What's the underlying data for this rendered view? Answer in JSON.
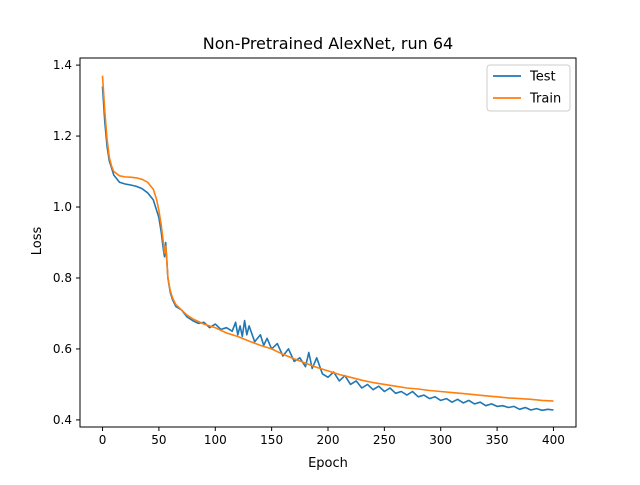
{
  "chart_data": {
    "type": "line",
    "title": "Non-Pretrained AlexNet, run 64",
    "xlabel": "Epoch",
    "ylabel": "Loss",
    "xlim": [
      -20,
      420
    ],
    "ylim": [
      0.38,
      1.42
    ],
    "xticks": [
      0,
      50,
      100,
      150,
      200,
      250,
      300,
      350,
      400
    ],
    "yticks": [
      0.4,
      0.6,
      0.8,
      1.0,
      1.2,
      1.4
    ],
    "xtick_labels": [
      "0",
      "50",
      "100",
      "150",
      "200",
      "250",
      "300",
      "350",
      "400"
    ],
    "ytick_labels": [
      "0.4",
      "0.6",
      "0.8",
      "1.0",
      "1.2",
      "1.4"
    ],
    "grid": false,
    "legend_position": "top-right",
    "series": [
      {
        "name": "Test",
        "color": "#1f77b4",
        "x": [
          0,
          2,
          4,
          6,
          8,
          10,
          15,
          20,
          25,
          30,
          35,
          40,
          45,
          48,
          50,
          52,
          54,
          55,
          56,
          57,
          58,
          60,
          62,
          65,
          70,
          75,
          80,
          85,
          90,
          95,
          100,
          105,
          110,
          115,
          118,
          120,
          122,
          124,
          126,
          128,
          130,
          135,
          140,
          143,
          146,
          150,
          155,
          160,
          165,
          170,
          175,
          180,
          183,
          186,
          190,
          195,
          200,
          205,
          210,
          215,
          220,
          225,
          230,
          235,
          240,
          245,
          250,
          255,
          260,
          265,
          270,
          275,
          280,
          285,
          290,
          295,
          300,
          305,
          310,
          315,
          320,
          325,
          330,
          335,
          340,
          345,
          350,
          355,
          360,
          365,
          370,
          375,
          380,
          385,
          390,
          395,
          400
        ],
        "y": [
          1.34,
          1.24,
          1.17,
          1.13,
          1.11,
          1.09,
          1.07,
          1.065,
          1.062,
          1.058,
          1.052,
          1.04,
          1.02,
          0.99,
          0.97,
          0.93,
          0.88,
          0.86,
          0.9,
          0.85,
          0.8,
          0.76,
          0.74,
          0.72,
          0.71,
          0.69,
          0.68,
          0.672,
          0.675,
          0.66,
          0.67,
          0.655,
          0.66,
          0.65,
          0.675,
          0.64,
          0.665,
          0.635,
          0.68,
          0.64,
          0.665,
          0.62,
          0.64,
          0.61,
          0.63,
          0.6,
          0.615,
          0.58,
          0.6,
          0.565,
          0.575,
          0.55,
          0.59,
          0.545,
          0.575,
          0.53,
          0.52,
          0.535,
          0.51,
          0.525,
          0.5,
          0.51,
          0.49,
          0.5,
          0.485,
          0.495,
          0.48,
          0.49,
          0.475,
          0.48,
          0.47,
          0.48,
          0.465,
          0.47,
          0.46,
          0.465,
          0.455,
          0.46,
          0.45,
          0.458,
          0.448,
          0.455,
          0.445,
          0.45,
          0.44,
          0.445,
          0.438,
          0.44,
          0.435,
          0.438,
          0.43,
          0.435,
          0.428,
          0.432,
          0.427,
          0.43,
          0.428
        ]
      },
      {
        "name": "Train",
        "color": "#ff7f0e",
        "x": [
          0,
          2,
          4,
          6,
          8,
          10,
          15,
          20,
          25,
          30,
          35,
          40,
          45,
          48,
          50,
          52,
          54,
          55,
          56,
          57,
          58,
          60,
          62,
          65,
          70,
          75,
          80,
          90,
          100,
          110,
          120,
          130,
          140,
          150,
          160,
          170,
          180,
          190,
          200,
          210,
          220,
          230,
          240,
          250,
          260,
          270,
          280,
          290,
          300,
          310,
          320,
          330,
          340,
          350,
          360,
          370,
          380,
          390,
          400
        ],
        "y": [
          1.37,
          1.27,
          1.19,
          1.14,
          1.115,
          1.1,
          1.088,
          1.085,
          1.084,
          1.082,
          1.078,
          1.07,
          1.05,
          1.02,
          0.99,
          0.95,
          0.9,
          0.87,
          0.89,
          0.85,
          0.8,
          0.765,
          0.745,
          0.725,
          0.71,
          0.695,
          0.685,
          0.67,
          0.66,
          0.645,
          0.635,
          0.622,
          0.61,
          0.6,
          0.585,
          0.572,
          0.56,
          0.548,
          0.538,
          0.528,
          0.52,
          0.512,
          0.505,
          0.5,
          0.495,
          0.49,
          0.487,
          0.483,
          0.48,
          0.477,
          0.474,
          0.471,
          0.468,
          0.465,
          0.462,
          0.46,
          0.458,
          0.455,
          0.453
        ]
      }
    ]
  }
}
